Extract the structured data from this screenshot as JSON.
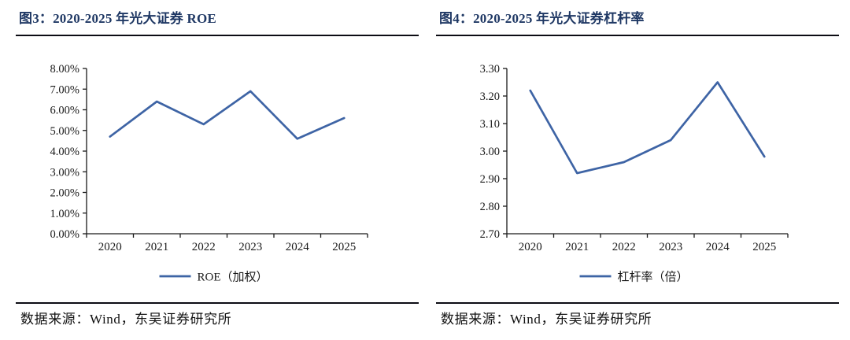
{
  "colors": {
    "title_navy": "#1f3864",
    "line_blue": "#3e64a5",
    "axis": "#1a1a1a",
    "rule": "#0c0c14",
    "background": "#ffffff"
  },
  "figures": [
    {
      "title": "图3：2020-2025 年光大证券 ROE",
      "source": "数据来源：Wind，东吴证券研究所"
    },
    {
      "title": "图4：2020-2025 年光大证券杠杆率",
      "source": "数据来源：Wind，东吴证券研究所"
    }
  ],
  "chart_data": [
    {
      "type": "line",
      "title": "2020-2025 年光大证券 ROE",
      "categories": [
        "2020",
        "2021",
        "2022",
        "2023",
        "2024",
        "2025"
      ],
      "series": [
        {
          "name": "ROE（加权）",
          "values": [
            4.7,
            6.4,
            5.3,
            6.9,
            4.6,
            5.6
          ]
        }
      ],
      "ylim": [
        0,
        8
      ],
      "ytick_step": 1,
      "ytick_format": "percent2",
      "ytick_labels": [
        "0.00%",
        "1.00%",
        "2.00%",
        "3.00%",
        "4.00%",
        "5.00%",
        "6.00%",
        "7.00%",
        "8.00%"
      ],
      "xlabel": "",
      "ylabel": "",
      "grid": false,
      "legend_position": "bottom"
    },
    {
      "type": "line",
      "title": "2020-2025 年光大证券杠杆率",
      "categories": [
        "2020",
        "2021",
        "2022",
        "2023",
        "2024",
        "2025"
      ],
      "series": [
        {
          "name": "杠杆率（倍）",
          "values": [
            3.22,
            2.92,
            2.96,
            3.04,
            3.25,
            2.98
          ]
        }
      ],
      "ylim": [
        2.7,
        3.3
      ],
      "ytick_step": 0.1,
      "ytick_format": "fixed2",
      "ytick_labels": [
        "2.70",
        "2.80",
        "2.90",
        "3.00",
        "3.10",
        "3.20",
        "3.30"
      ],
      "xlabel": "",
      "ylabel": "",
      "grid": false,
      "legend_position": "bottom"
    }
  ]
}
